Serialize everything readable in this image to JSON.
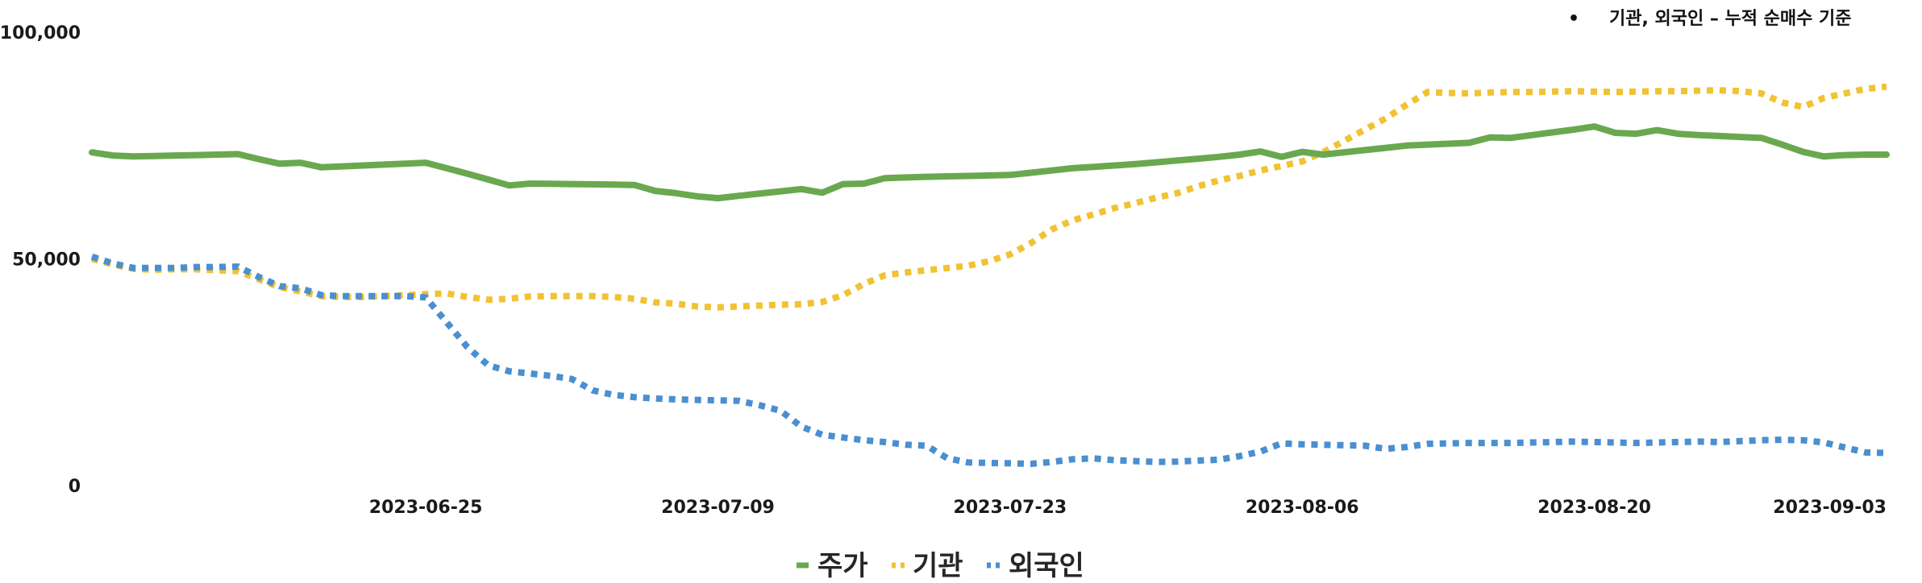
{
  "chart_data": {
    "type": "line",
    "annotation": "기관, 외국인 – 누적 순매수 기준",
    "annotation_bullet": "•",
    "ylim": [
      0,
      100000
    ],
    "yticks": [
      0,
      50000,
      100000
    ],
    "ytick_labels": [
      "0",
      "50,000",
      "100,000"
    ],
    "x": [
      "2023-06-09",
      "2023-06-10",
      "2023-06-11",
      "2023-06-12",
      "2023-06-13",
      "2023-06-14",
      "2023-06-15",
      "2023-06-16",
      "2023-06-17",
      "2023-06-18",
      "2023-06-19",
      "2023-06-20",
      "2023-06-21",
      "2023-06-22",
      "2023-06-23",
      "2023-06-24",
      "2023-06-25",
      "2023-06-26",
      "2023-06-27",
      "2023-06-28",
      "2023-06-29",
      "2023-06-30",
      "2023-07-01",
      "2023-07-02",
      "2023-07-03",
      "2023-07-04",
      "2023-07-05",
      "2023-07-06",
      "2023-07-07",
      "2023-07-08",
      "2023-07-09",
      "2023-07-10",
      "2023-07-11",
      "2023-07-12",
      "2023-07-13",
      "2023-07-14",
      "2023-07-15",
      "2023-07-16",
      "2023-07-17",
      "2023-07-18",
      "2023-07-19",
      "2023-07-20",
      "2023-07-21",
      "2023-07-22",
      "2023-07-23",
      "2023-07-24",
      "2023-07-25",
      "2023-07-26",
      "2023-07-27",
      "2023-07-28",
      "2023-07-29",
      "2023-07-30",
      "2023-07-31",
      "2023-08-01",
      "2023-08-02",
      "2023-08-03",
      "2023-08-04",
      "2023-08-05",
      "2023-08-06",
      "2023-08-07",
      "2023-08-08",
      "2023-08-09",
      "2023-08-10",
      "2023-08-11",
      "2023-08-12",
      "2023-08-13",
      "2023-08-14",
      "2023-08-15",
      "2023-08-16",
      "2023-08-17",
      "2023-08-18",
      "2023-08-19",
      "2023-08-20",
      "2023-08-21",
      "2023-08-22",
      "2023-08-23",
      "2023-08-24",
      "2023-08-25",
      "2023-08-26",
      "2023-08-27",
      "2023-08-28",
      "2023-08-29",
      "2023-08-30",
      "2023-08-31",
      "2023-09-01",
      "2023-09-02",
      "2023-09-03"
    ],
    "xtick_labels": [
      "2023-06-25",
      "2023-07-09",
      "2023-07-23",
      "2023-08-06",
      "2023-08-20",
      "2023-09-03"
    ],
    "series": [
      {
        "name": "주가",
        "color": "#6aa84f",
        "style": "solid",
        "values": [
          73500,
          72800,
          72600,
          72700,
          72800,
          72900,
          73000,
          73100,
          72000,
          71000,
          71200,
          70200,
          70400,
          70600,
          70800,
          71000,
          71200,
          70000,
          68800,
          67500,
          66200,
          66600,
          66550,
          66500,
          66450,
          66400,
          66300,
          65000,
          64500,
          63800,
          63400,
          63900,
          64400,
          64900,
          65400,
          64600,
          66500,
          66600,
          67800,
          67950,
          68100,
          68200,
          68300,
          68400,
          68500,
          69000,
          69500,
          70000,
          70300,
          70600,
          70900,
          71300,
          71700,
          72100,
          72500,
          73000,
          73700,
          72500,
          73600,
          73000,
          73500,
          74000,
          74500,
          75000,
          75200,
          75400,
          75600,
          76800,
          76700,
          77300,
          77900,
          78500,
          79200,
          77800,
          77600,
          78400,
          77600,
          77300,
          77100,
          76900,
          76700,
          75200,
          73600,
          72600,
          72900,
          73000,
          73000
        ]
      },
      {
        "name": "기관",
        "color": "#f1c232",
        "style": "dotted",
        "values": [
          50000,
          48800,
          47800,
          47600,
          47700,
          47700,
          47500,
          47300,
          45500,
          43800,
          42800,
          41800,
          41600,
          41600,
          41800,
          42000,
          42200,
          42400,
          41600,
          41000,
          41200,
          41700,
          41800,
          41800,
          41800,
          41600,
          41200,
          40400,
          40100,
          39500,
          39300,
          39500,
          39700,
          39900,
          40000,
          40500,
          42000,
          44500,
          46400,
          47000,
          47500,
          48000,
          48500,
          49500,
          51000,
          53500,
          56500,
          58500,
          59800,
          61200,
          62300,
          63500,
          64500,
          66000,
          67300,
          68300,
          69500,
          70500,
          71500,
          73500,
          76000,
          78500,
          81000,
          84000,
          86800,
          86600,
          86500,
          86700,
          86800,
          86800,
          86900,
          87000,
          86900,
          86800,
          86900,
          87000,
          87000,
          87100,
          87200,
          87000,
          86500,
          84500,
          83500,
          85500,
          86500,
          87500,
          88000
        ]
      },
      {
        "name": "외국인",
        "color": "#4a8fd0",
        "style": "dotted",
        "values": [
          50500,
          49000,
          48000,
          48000,
          48000,
          48200,
          48200,
          48300,
          46000,
          44000,
          43500,
          42000,
          41800,
          41800,
          41800,
          41800,
          41500,
          36000,
          30500,
          26500,
          25200,
          24700,
          24200,
          23500,
          21000,
          20000,
          19500,
          19200,
          19000,
          18900,
          18800,
          18700,
          17700,
          16500,
          13000,
          11200,
          10600,
          10000,
          9600,
          9000,
          8800,
          6000,
          5100,
          5000,
          4900,
          4800,
          5200,
          5800,
          6000,
          5600,
          5400,
          5200,
          5300,
          5500,
          5700,
          6500,
          7500,
          9300,
          9100,
          9000,
          8900,
          8800,
          8100,
          8500,
          9200,
          9300,
          9400,
          9400,
          9400,
          9500,
          9600,
          9700,
          9600,
          9500,
          9400,
          9500,
          9600,
          9700,
          9600,
          9800,
          10000,
          10100,
          10000,
          9500,
          8400,
          7300,
          7200
        ]
      }
    ]
  }
}
